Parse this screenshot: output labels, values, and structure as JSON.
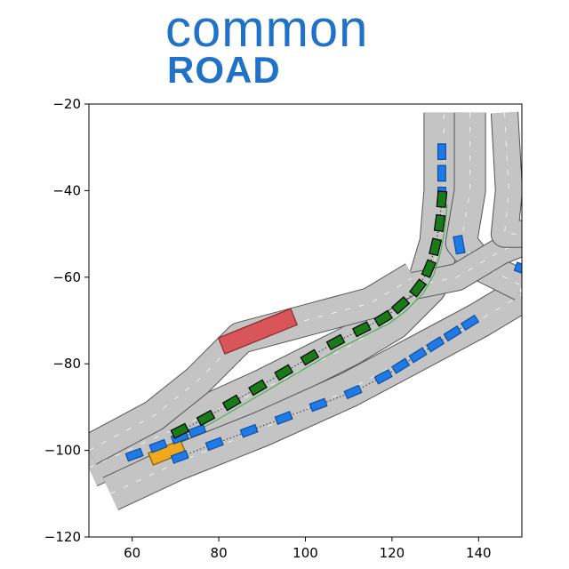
{
  "logo": {
    "line1": "common",
    "line2": "ROAD"
  },
  "colors": {
    "road": "#c4c4c4",
    "road_edge": "#555555",
    "lane_marker": "#eeeeee",
    "ego_vehicle": "#1a7a1a",
    "ego_border": "#000000",
    "other_vehicle": "#1f7ae6",
    "obstacle_static": "#d8555a",
    "obstacle_orange": "#f2a81d",
    "trajectory_dotted": "#333333",
    "goal_line": "#4caf50",
    "logo_blue": "#1f72c8"
  },
  "chart_data": {
    "type": "scatter",
    "title": "",
    "xlabel": "",
    "ylabel": "",
    "xlim": [
      50,
      150
    ],
    "ylim": [
      -120,
      -20
    ],
    "x_ticks": [
      60,
      80,
      100,
      120,
      140
    ],
    "y_ticks": [
      -20,
      -40,
      -60,
      -80,
      -100,
      -120
    ],
    "grid": false,
    "roads": [
      {
        "name": "main-road",
        "width": 9,
        "points": [
          [
            50,
            -104
          ],
          [
            70,
            -95
          ],
          [
            90,
            -86
          ],
          [
            110,
            -76
          ],
          [
            120,
            -70
          ],
          [
            128,
            -62
          ],
          [
            131,
            -52
          ],
          [
            132,
            -40
          ],
          [
            132,
            -22
          ]
        ]
      },
      {
        "name": "lower-road",
        "width": 8,
        "points": [
          [
            55,
            -110
          ],
          [
            70,
            -103
          ],
          [
            90,
            -95
          ],
          [
            110,
            -86
          ],
          [
            125,
            -78
          ],
          [
            140,
            -70
          ],
          [
            150,
            -64
          ]
        ]
      },
      {
        "name": "upper-left-connector",
        "width": 7,
        "points": [
          [
            50,
            -100
          ],
          [
            65,
            -92
          ],
          [
            75,
            -84
          ],
          [
            85,
            -74
          ],
          [
            100,
            -70
          ],
          [
            115,
            -66
          ],
          [
            125,
            -60
          ]
        ]
      },
      {
        "name": "right-road-upper",
        "width": 7,
        "points": [
          [
            138,
            -22
          ],
          [
            138,
            -40
          ],
          [
            136,
            -52
          ],
          [
            140,
            -57
          ],
          [
            150,
            -62
          ]
        ]
      },
      {
        "name": "right-branch",
        "width": 6,
        "points": [
          [
            125,
            -62
          ],
          [
            135,
            -60
          ],
          [
            145,
            -54
          ],
          [
            150,
            -52
          ]
        ]
      },
      {
        "name": "far-right-road",
        "width": 6,
        "points": [
          [
            146,
            -22
          ],
          [
            147,
            -40
          ],
          [
            146,
            -50
          ],
          [
            150,
            -50
          ]
        ]
      }
    ],
    "ego_trajectory": [
      [
        71,
        -95.5
      ],
      [
        77,
        -92.5
      ],
      [
        83,
        -89
      ],
      [
        89,
        -85.5
      ],
      [
        95,
        -82
      ],
      [
        101,
        -78.5
      ],
      [
        107,
        -75
      ],
      [
        113,
        -72
      ],
      [
        118,
        -69.5
      ],
      [
        122,
        -66.5
      ],
      [
        126,
        -62.5
      ],
      [
        128.5,
        -58
      ],
      [
        130,
        -53
      ],
      [
        131,
        -47.5
      ],
      [
        131.5,
        -42
      ]
    ],
    "other_vehicles_main": [
      [
        60.5,
        -101
      ],
      [
        66,
        -99
      ],
      [
        71,
        -97
      ],
      [
        75,
        -95.5
      ]
    ],
    "other_vehicles_lower": [
      [
        71,
        -101.5
      ],
      [
        79,
        -98.5
      ],
      [
        87,
        -95.5
      ],
      [
        95,
        -92.5
      ],
      [
        103,
        -89.5
      ],
      [
        111,
        -86.5
      ],
      [
        118,
        -83
      ],
      [
        122,
        -80.5
      ],
      [
        126,
        -78
      ],
      [
        130,
        -75.5
      ],
      [
        134,
        -73
      ],
      [
        138,
        -70.5
      ]
    ],
    "other_vehicles_vertical": [
      [
        131.5,
        -31
      ],
      [
        131.5,
        -36
      ],
      [
        131.5,
        -41
      ]
    ],
    "single_vehicle": [
      135.5,
      -52.5
    ],
    "edge_vehicle": [
      150,
      -58
    ],
    "static_obstacle": {
      "x": 89,
      "y": -72.5,
      "length": 18,
      "width": 4,
      "angle_deg": 22
    },
    "orange_obstacle": {
      "x": 68,
      "y": -100.5,
      "length": 8,
      "width": 3,
      "angle_deg": 22
    }
  }
}
